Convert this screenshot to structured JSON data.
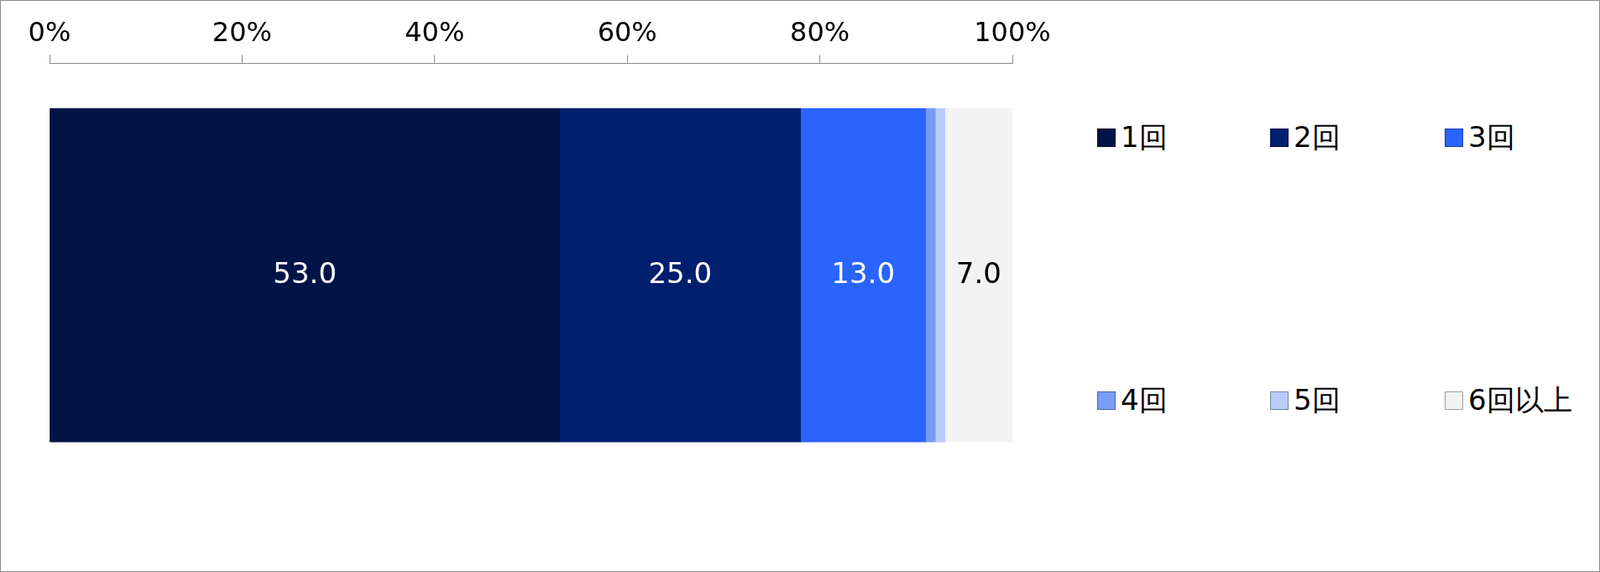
{
  "chart_data": {
    "type": "bar",
    "orientation": "horizontal",
    "stacked": true,
    "categories": [
      null
    ],
    "series": [
      {
        "name": "1回",
        "color": "#001446",
        "values": [
          53.0
        ],
        "value_labels": [
          "53.0"
        ]
      },
      {
        "name": "2回",
        "color": "#001f6e",
        "values": [
          25.0
        ],
        "value_labels": [
          "25.0"
        ]
      },
      {
        "name": "3回",
        "color": "#2a64ff",
        "values": [
          13.0
        ],
        "value_labels": [
          "13.0"
        ]
      },
      {
        "name": "4回",
        "color": "#7b9cf5",
        "values": [
          1.0
        ],
        "value_labels": [
          null
        ]
      },
      {
        "name": "5回",
        "color": "#b9ccfa",
        "values": [
          1.0
        ],
        "value_labels": [
          null
        ]
      },
      {
        "name": "6回以上",
        "color": "#f2f2f2",
        "values": [
          7.0
        ],
        "value_labels": [
          "7.0"
        ]
      }
    ],
    "xlim": [
      0,
      100
    ],
    "xticks": [
      {
        "value": 0,
        "label": "0%"
      },
      {
        "value": 20,
        "label": "20%"
      },
      {
        "value": 40,
        "label": "40%"
      },
      {
        "value": 60,
        "label": "60%"
      },
      {
        "value": 80,
        "label": "80%"
      },
      {
        "value": 100,
        "label": "100%"
      }
    ],
    "grid": false,
    "legend": "right",
    "data_labels": true,
    "tick_labels": "x"
  }
}
